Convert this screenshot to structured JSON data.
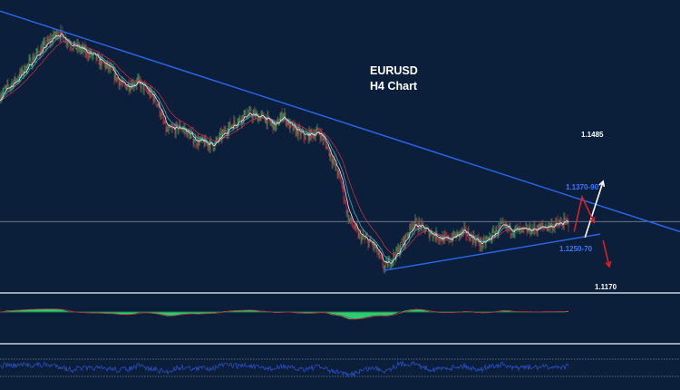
{
  "chart_data": {
    "type": "candlestick",
    "title": "EURUSD",
    "subtitle": "H4 Chart",
    "ylim": [
      1.1163,
      1.1763
    ],
    "xlim": [
      0,
      187.5
    ],
    "grid": false,
    "colors": {
      "background": "#0b1e3a",
      "bull_candle": "#2e9e5e",
      "bear_candle": "#b0283c",
      "ma_fast": "#e8e8e8",
      "ma_mid": "#3fb0c8",
      "ma_slow": "#c0303c",
      "trendline": "#2a64e6",
      "level_line": "#8a94a6",
      "oscillator_fill": "#2ecc71",
      "oscillator_signal": "#c0303c",
      "rsi_line": "#2a4fc0",
      "bullish_arrow": "#ffffff",
      "bearish_arrow": "#e02020",
      "level_label": "#3a78ff"
    },
    "price_path": {
      "bars": [
        0,
        5,
        10,
        16,
        20,
        25,
        30,
        34,
        38,
        43,
        46,
        50,
        54,
        59,
        63,
        68,
        73,
        76,
        78,
        80,
        84,
        88,
        90,
        94,
        96,
        99,
        103,
        106,
        110,
        114,
        118,
        123,
        128,
        133,
        138,
        144,
        150,
        156
      ],
      "close": [
        1.1566,
        1.1603,
        1.165,
        1.1697,
        1.1669,
        1.165,
        1.1622,
        1.1584,
        1.1594,
        1.1556,
        1.1491,
        1.15,
        1.1472,
        1.1463,
        1.15,
        1.1528,
        1.1519,
        1.15,
        1.1528,
        1.15,
        1.1481,
        1.1491,
        1.1463,
        1.1388,
        1.1313,
        1.1275,
        1.1256,
        1.1209,
        1.1247,
        1.1303,
        1.1284,
        1.1266,
        1.1284,
        1.1256,
        1.1294,
        1.1284,
        1.1294,
        1.1303
      ]
    },
    "trendlines": [
      {
        "name": "descending-resistance",
        "from": [
          0,
          1.174
        ],
        "to": [
          187.5,
          1.1284
        ]
      },
      {
        "name": "rising-support",
        "from": [
          106,
          1.1204
        ],
        "to": [
          165.5,
          1.1279
        ]
      }
    ],
    "horizontal_level": 1.1305,
    "annotations": [
      {
        "text": "1.1485",
        "color": "#ffffff"
      },
      {
        "text": "1.1370-90",
        "color": "#3a78ff"
      },
      {
        "text": "1.1250-70",
        "color": "#3a78ff"
      },
      {
        "text": "1.1170",
        "color": "#ffffff"
      }
    ],
    "scenario_arrows": [
      {
        "name": "bullish-breakout-arrow",
        "points": [
          [
            161.3,
            1.1272
          ],
          [
            166.3,
            1.1388
          ]
        ]
      },
      {
        "name": "rejection-zigzag-arrow",
        "points": [
          [
            158.3,
            1.1284
          ],
          [
            160.5,
            1.1356
          ],
          [
            163.8,
            1.1303
          ]
        ]
      },
      {
        "name": "bearish-breakdown-arrow",
        "points": [
          [
            166.3,
            1.1266
          ],
          [
            168,
            1.1212
          ]
        ]
      }
    ]
  }
}
